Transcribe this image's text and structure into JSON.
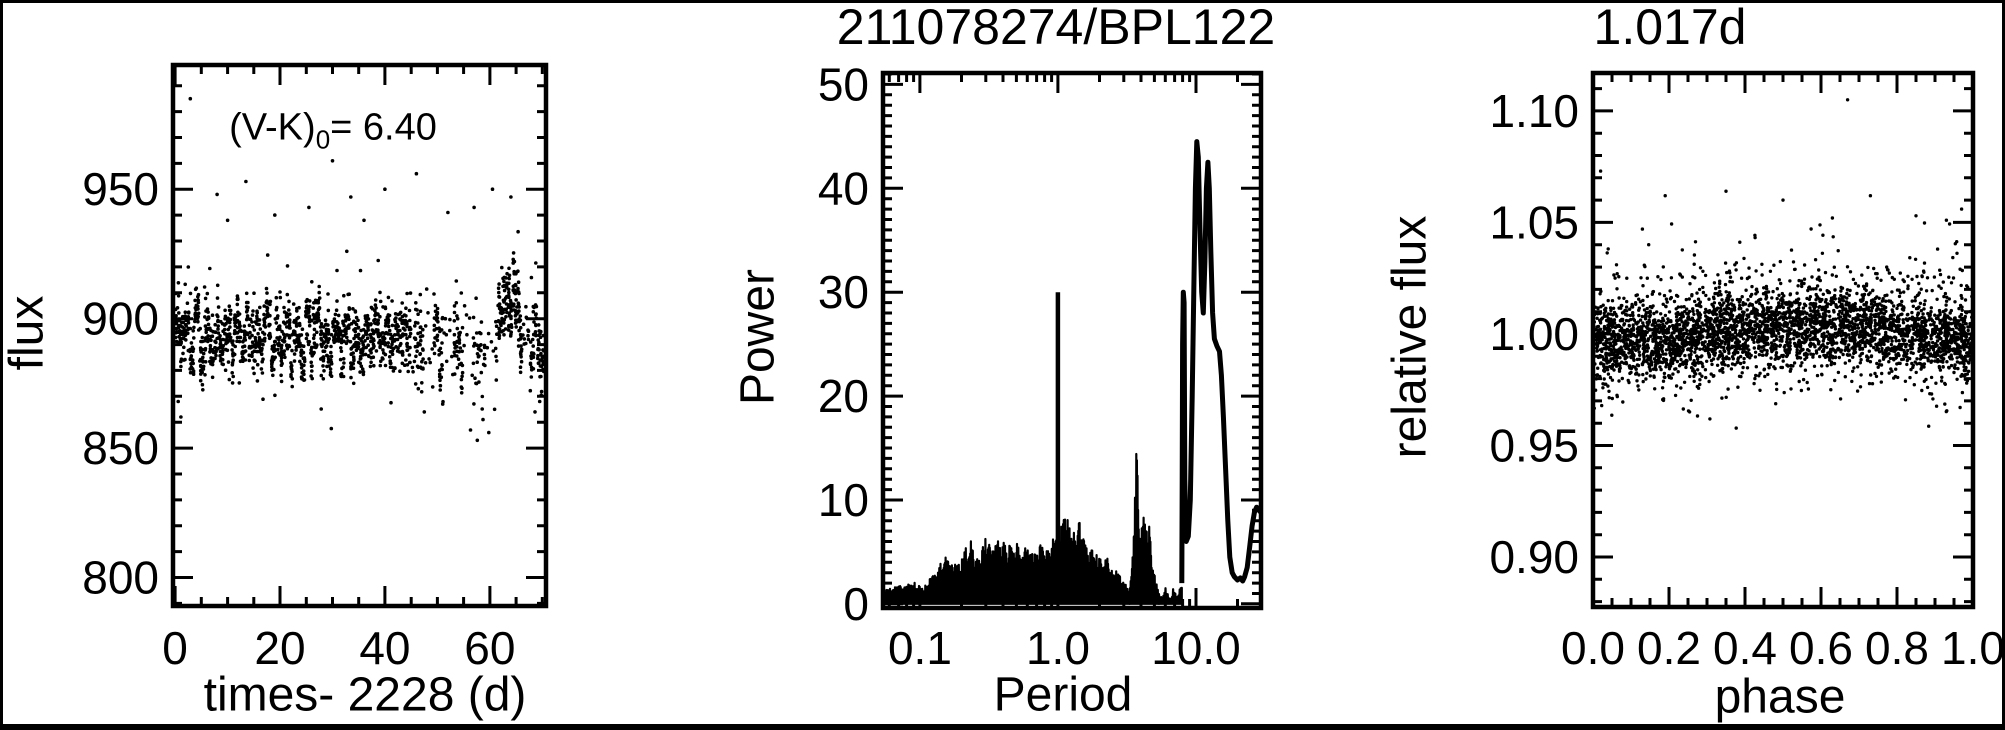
{
  "figure": {
    "background": "#ffffff",
    "foreground": "#000000",
    "titles": {
      "main": "211078274/BPL122",
      "period": "1.017d"
    }
  },
  "chart_data": [
    {
      "type": "scatter",
      "name": "light-curve",
      "xlabel": "times- 2228 (d)",
      "ylabel": "flux",
      "annotation": {
        "prefix": "(V-K)",
        "sub": "0",
        "suffix": "= 6.40"
      },
      "xlim": [
        -0.4,
        70.7
      ],
      "ylim": [
        789,
        998
      ],
      "x_major_ticks": [
        0,
        20,
        40,
        60
      ],
      "x_tick_labels": [
        "0",
        "20",
        "40",
        "60"
      ],
      "x_minor_step": 5,
      "y_major_ticks": [
        950,
        900,
        850,
        800
      ],
      "y_tick_labels": [
        "950",
        "900",
        "850",
        "800"
      ],
      "y_minor_step": 10,
      "scatter_spec": {
        "strip_step": 0.47,
        "strip_jitter": 0.32,
        "stripe_period_days": 1.9,
        "stripe_amplitude": 6,
        "segments": [
          {
            "t0": 0.0,
            "t1": 40.0,
            "mean": 893,
            "sd": 6.5,
            "pts": 13,
            "gap": false
          },
          {
            "t0": 40.0,
            "t1": 45.0,
            "mean": 892,
            "sd": 8.5,
            "pts": 12,
            "gap": false
          },
          {
            "t0": 45.0,
            "t1": 56.0,
            "mean": 889,
            "sd": 11,
            "pts": 11,
            "gap": true
          },
          {
            "t0": 56.0,
            "t1": 61.5,
            "mean": 886,
            "sd": 11,
            "pts": 7,
            "gap": true
          },
          {
            "t0": 61.5,
            "t1": 66.3,
            "mean": 906,
            "sd": 10,
            "pts": 16,
            "gap": false
          },
          {
            "t0": 66.3,
            "t1": 67.6,
            "mean": 893,
            "sd": 7,
            "pts": 4,
            "gap": false
          },
          {
            "t0": 67.6,
            "t1": 70.6,
            "mean": 891,
            "sd": 9,
            "pts": 12,
            "gap": false
          }
        ],
        "outliers_high": [
          [
            2.9,
            985
          ],
          [
            8,
            948
          ],
          [
            10,
            938
          ],
          [
            13.5,
            953
          ],
          [
            19,
            940
          ],
          [
            25.5,
            943
          ],
          [
            30,
            961
          ],
          [
            33.5,
            947
          ],
          [
            36,
            938
          ],
          [
            40,
            950
          ],
          [
            46,
            956
          ],
          [
            52,
            941
          ],
          [
            57,
            943
          ],
          [
            60.5,
            950
          ],
          [
            64,
            947
          ]
        ],
        "outliers_low": [
          [
            0.6,
            868
          ],
          [
            1.1,
            862
          ],
          [
            47.5,
            864
          ],
          [
            51,
            867
          ],
          [
            56.3,
            857
          ],
          [
            57.6,
            853
          ],
          [
            58.7,
            861
          ],
          [
            59.8,
            856
          ],
          [
            60.9,
            865
          ],
          [
            68.6,
            864
          ],
          [
            69.5,
            868
          ]
        ]
      }
    },
    {
      "type": "line",
      "name": "periodogram",
      "title": "211078274/BPL122",
      "xlabel": "Period",
      "ylabel": "Power",
      "xscale": "log",
      "xlim": [
        0.054,
        29.6
      ],
      "ylim": [
        -0.4,
        51.1
      ],
      "x_major_ticks": [
        0.1,
        1.0,
        10.0
      ],
      "x_tick_labels": [
        "0.1",
        "1.0",
        "10.0"
      ],
      "y_major_ticks": [
        50,
        40,
        30,
        20,
        10,
        0
      ],
      "y_tick_labels": [
        "50",
        "40",
        "30",
        "20",
        "10",
        "0"
      ],
      "y_minor_step": 1,
      "spike": {
        "period": 1.0,
        "power": 30
      },
      "noise_envelope": [
        [
          0.054,
          1.2
        ],
        [
          0.07,
          1.8
        ],
        [
          0.09,
          2.2
        ],
        [
          0.105,
          1.6
        ],
        [
          0.125,
          2.8
        ],
        [
          0.15,
          4.8
        ],
        [
          0.175,
          3.6
        ],
        [
          0.2,
          4.6
        ],
        [
          0.23,
          6.3
        ],
        [
          0.26,
          4.6
        ],
        [
          0.3,
          6.5
        ],
        [
          0.34,
          5.2
        ],
        [
          0.38,
          6.8
        ],
        [
          0.43,
          5.4
        ],
        [
          0.48,
          6.2
        ],
        [
          0.54,
          5.2
        ],
        [
          0.6,
          5.6
        ],
        [
          0.67,
          5.2
        ],
        [
          0.75,
          5.8
        ],
        [
          0.83,
          5.2
        ],
        [
          0.9,
          6.2
        ],
        [
          0.97,
          6.8
        ],
        [
          1.05,
          8.2
        ],
        [
          1.12,
          8.8
        ],
        [
          1.2,
          8.0
        ],
        [
          1.28,
          8.6
        ],
        [
          1.35,
          6.4
        ],
        [
          1.45,
          8.4
        ],
        [
          1.55,
          6.0
        ],
        [
          1.65,
          5.0
        ],
        [
          1.75,
          5.6
        ],
        [
          1.85,
          4.6
        ],
        [
          1.95,
          5.0
        ],
        [
          2.1,
          4.0
        ],
        [
          2.25,
          4.8
        ],
        [
          2.45,
          3.2
        ],
        [
          2.65,
          3.6
        ],
        [
          2.85,
          2.6
        ],
        [
          3.05,
          2.0
        ],
        [
          3.3,
          1.2
        ]
      ],
      "cluster_envelope": [
        [
          3.3,
          1.5
        ],
        [
          3.45,
          4
        ],
        [
          3.55,
          8
        ],
        [
          3.65,
          12.5
        ],
        [
          3.73,
          17
        ],
        [
          3.82,
          10
        ],
        [
          3.95,
          6.5
        ],
        [
          4.1,
          8
        ],
        [
          4.25,
          9.5
        ],
        [
          4.4,
          7
        ],
        [
          4.55,
          8.5
        ],
        [
          4.7,
          6
        ],
        [
          4.85,
          4.5
        ],
        [
          5.0,
          3
        ],
        [
          5.2,
          1.8
        ],
        [
          5.4,
          1
        ]
      ],
      "low_envelope": [
        [
          5.4,
          1
        ],
        [
          5.7,
          0.6
        ],
        [
          6.0,
          1.6
        ],
        [
          6.3,
          0.8
        ],
        [
          6.6,
          0.5
        ],
        [
          6.9,
          1.8
        ],
        [
          7.2,
          0.7
        ],
        [
          7.5,
          1.2
        ],
        [
          7.9,
          2
        ]
      ],
      "peak_profile": [
        [
          7.9,
          2
        ],
        [
          7.95,
          12
        ],
        [
          8.0,
          25
        ],
        [
          8.1,
          30
        ],
        [
          8.2,
          29
        ],
        [
          8.3,
          12
        ],
        [
          8.5,
          6
        ],
        [
          8.8,
          6.5
        ],
        [
          9.1,
          10
        ],
        [
          9.4,
          20
        ],
        [
          9.7,
          32
        ],
        [
          9.9,
          40
        ],
        [
          10.15,
          44.5
        ],
        [
          10.4,
          43
        ],
        [
          10.7,
          36
        ],
        [
          11.0,
          30
        ],
        [
          11.3,
          28
        ],
        [
          11.6,
          33
        ],
        [
          11.9,
          40
        ],
        [
          12.2,
          42.5
        ],
        [
          12.5,
          40
        ],
        [
          12.8,
          34
        ],
        [
          13.2,
          28
        ],
        [
          13.6,
          25.5
        ],
        [
          14.2,
          24.8
        ],
        [
          14.8,
          24.3
        ],
        [
          15.3,
          22
        ],
        [
          15.8,
          18
        ],
        [
          16.4,
          13
        ],
        [
          17.0,
          8
        ],
        [
          17.6,
          4.5
        ],
        [
          18.3,
          3
        ],
        [
          19.0,
          2.6
        ],
        [
          20.0,
          2.3
        ],
        [
          21.0,
          2.5
        ],
        [
          21.8,
          2.2
        ],
        [
          22.5,
          2.6
        ],
        [
          23.5,
          3.5
        ],
        [
          24.5,
          5.5
        ],
        [
          25.5,
          7.5
        ],
        [
          26.5,
          8.8
        ],
        [
          27.5,
          9.3
        ],
        [
          28.3,
          9.2
        ],
        [
          29.0,
          8.9
        ],
        [
          29.6,
          9.0
        ]
      ]
    },
    {
      "type": "scatter",
      "name": "phased-light-curve",
      "title": "1.017d",
      "xlabel": "phase",
      "ylabel": "relative flux",
      "xlim": [
        0.0,
        1.0
      ],
      "ylim": [
        0.8776,
        1.117
      ],
      "x_major_ticks": [
        0.0,
        0.2,
        0.4,
        0.6,
        0.8,
        1.0
      ],
      "x_tick_labels": [
        "0.0",
        "0.2",
        "0.4",
        "0.6",
        "0.8",
        "1.0"
      ],
      "x_minor_step": 0.05,
      "y_major_ticks": [
        1.1,
        1.05,
        1.0,
        0.95,
        0.9
      ],
      "y_tick_labels": [
        "1.10",
        "1.05",
        "1.00",
        "0.95",
        "0.90"
      ],
      "y_minor_step": 0.01,
      "scatter_spec": {
        "n": 3800,
        "mean": 1.0,
        "modulation_amplitude": 0.0035,
        "modulation_peak_phase": 0.55,
        "core_sd": 0.0085,
        "wide_sd": 0.015,
        "wide_fraction": 0.19,
        "upper_tail_fraction": 0.02,
        "lower_clip": 0.9525,
        "outliers": [
          [
            0.02,
            1.073
          ],
          [
            0.13,
            1.047
          ],
          [
            0.19,
            1.062
          ],
          [
            0.35,
            1.064
          ],
          [
            0.5,
            1.06
          ],
          [
            0.63,
            1.052
          ],
          [
            0.67,
            1.105
          ],
          [
            0.73,
            1.062
          ],
          [
            0.85,
            1.053
          ],
          [
            0.93,
            1.051
          ],
          [
            0.97,
            1.056
          ]
        ]
      }
    }
  ]
}
